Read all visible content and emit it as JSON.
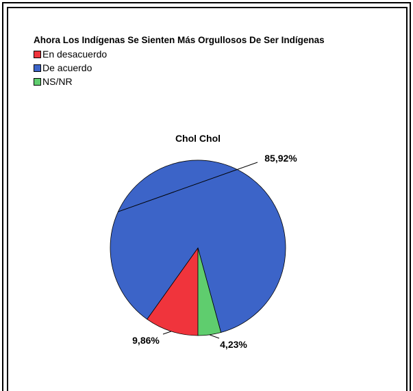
{
  "chart_data": {
    "type": "pie",
    "title": "Ahora Los Indígenas Se Sienten Más Orgullosos De Ser Indígenas",
    "subtitle": "Chol Chol",
    "legend_position": "top-left",
    "slices": [
      {
        "name": "En desacuerdo",
        "value": 9.86,
        "label": "9,86%",
        "color": "#f0343c"
      },
      {
        "name": "De acuerdo",
        "value": 85.92,
        "label": "85,92%",
        "color": "#3c64c8"
      },
      {
        "name": "NS/NR",
        "value": 4.23,
        "label": "4,23%",
        "color": "#5fcd6e"
      }
    ]
  }
}
